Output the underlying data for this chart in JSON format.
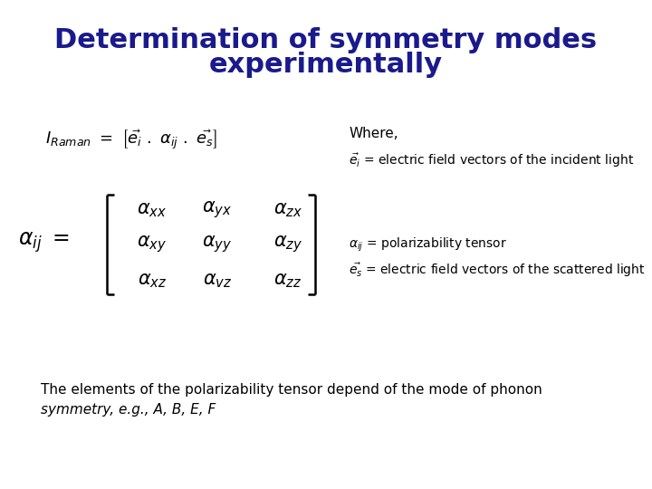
{
  "title_line1": "Determination of symmetry modes",
  "title_line2": "experimentally",
  "title_color": "#1a1a8c",
  "title_fontsize": 22,
  "bg_color": "#ffffff",
  "where_text": "Where,",
  "bottom_text_line1": "The elements of the polarizability tensor depend of the mode of phonon",
  "bottom_text_line2": "symmetry, e.g., A, B, E, F",
  "text_fontsize": 11,
  "label_fontsize": 10,
  "formula_fontsize": 13,
  "matrix_fontsize": 15,
  "matrix_lhs_fontsize": 17
}
